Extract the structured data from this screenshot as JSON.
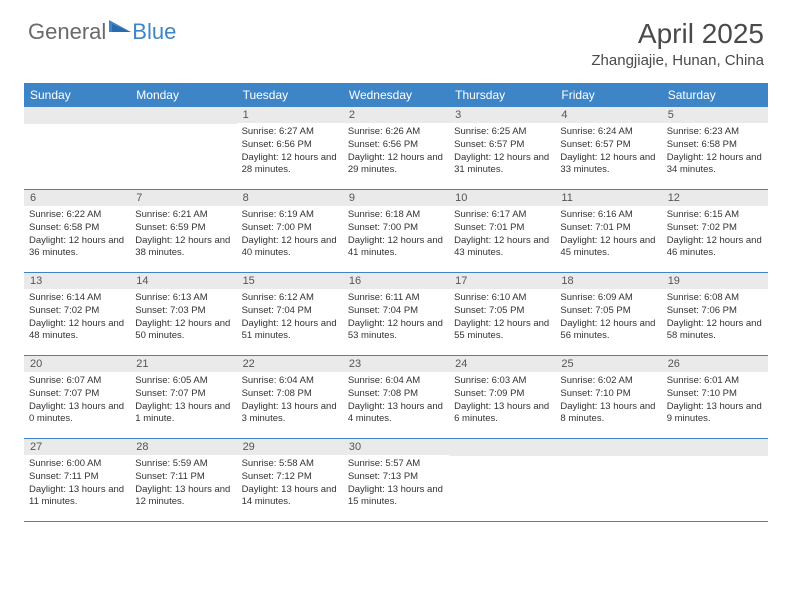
{
  "logo": {
    "text1": "General",
    "text2": "Blue"
  },
  "title": "April 2025",
  "location": "Zhangjiajie, Hunan, China",
  "colors": {
    "header_bg": "#3d85c6",
    "header_text": "#ffffff",
    "daynum_bg": "#eaeaea",
    "daynum_text": "#555555",
    "body_text": "#333333",
    "border": "#3d85c6"
  },
  "fonts": {
    "title_size": 28,
    "location_size": 15,
    "header_size": 12,
    "daynum_size": 11,
    "body_size": 9.5
  },
  "dayNames": [
    "Sunday",
    "Monday",
    "Tuesday",
    "Wednesday",
    "Thursday",
    "Friday",
    "Saturday"
  ],
  "weeks": [
    [
      {
        "n": "",
        "sr": "",
        "ss": "",
        "dl": ""
      },
      {
        "n": "",
        "sr": "",
        "ss": "",
        "dl": ""
      },
      {
        "n": "1",
        "sr": "Sunrise: 6:27 AM",
        "ss": "Sunset: 6:56 PM",
        "dl": "Daylight: 12 hours and 28 minutes."
      },
      {
        "n": "2",
        "sr": "Sunrise: 6:26 AM",
        "ss": "Sunset: 6:56 PM",
        "dl": "Daylight: 12 hours and 29 minutes."
      },
      {
        "n": "3",
        "sr": "Sunrise: 6:25 AM",
        "ss": "Sunset: 6:57 PM",
        "dl": "Daylight: 12 hours and 31 minutes."
      },
      {
        "n": "4",
        "sr": "Sunrise: 6:24 AM",
        "ss": "Sunset: 6:57 PM",
        "dl": "Daylight: 12 hours and 33 minutes."
      },
      {
        "n": "5",
        "sr": "Sunrise: 6:23 AM",
        "ss": "Sunset: 6:58 PM",
        "dl": "Daylight: 12 hours and 34 minutes."
      }
    ],
    [
      {
        "n": "6",
        "sr": "Sunrise: 6:22 AM",
        "ss": "Sunset: 6:58 PM",
        "dl": "Daylight: 12 hours and 36 minutes."
      },
      {
        "n": "7",
        "sr": "Sunrise: 6:21 AM",
        "ss": "Sunset: 6:59 PM",
        "dl": "Daylight: 12 hours and 38 minutes."
      },
      {
        "n": "8",
        "sr": "Sunrise: 6:19 AM",
        "ss": "Sunset: 7:00 PM",
        "dl": "Daylight: 12 hours and 40 minutes."
      },
      {
        "n": "9",
        "sr": "Sunrise: 6:18 AM",
        "ss": "Sunset: 7:00 PM",
        "dl": "Daylight: 12 hours and 41 minutes."
      },
      {
        "n": "10",
        "sr": "Sunrise: 6:17 AM",
        "ss": "Sunset: 7:01 PM",
        "dl": "Daylight: 12 hours and 43 minutes."
      },
      {
        "n": "11",
        "sr": "Sunrise: 6:16 AM",
        "ss": "Sunset: 7:01 PM",
        "dl": "Daylight: 12 hours and 45 minutes."
      },
      {
        "n": "12",
        "sr": "Sunrise: 6:15 AM",
        "ss": "Sunset: 7:02 PM",
        "dl": "Daylight: 12 hours and 46 minutes."
      }
    ],
    [
      {
        "n": "13",
        "sr": "Sunrise: 6:14 AM",
        "ss": "Sunset: 7:02 PM",
        "dl": "Daylight: 12 hours and 48 minutes."
      },
      {
        "n": "14",
        "sr": "Sunrise: 6:13 AM",
        "ss": "Sunset: 7:03 PM",
        "dl": "Daylight: 12 hours and 50 minutes."
      },
      {
        "n": "15",
        "sr": "Sunrise: 6:12 AM",
        "ss": "Sunset: 7:04 PM",
        "dl": "Daylight: 12 hours and 51 minutes."
      },
      {
        "n": "16",
        "sr": "Sunrise: 6:11 AM",
        "ss": "Sunset: 7:04 PM",
        "dl": "Daylight: 12 hours and 53 minutes."
      },
      {
        "n": "17",
        "sr": "Sunrise: 6:10 AM",
        "ss": "Sunset: 7:05 PM",
        "dl": "Daylight: 12 hours and 55 minutes."
      },
      {
        "n": "18",
        "sr": "Sunrise: 6:09 AM",
        "ss": "Sunset: 7:05 PM",
        "dl": "Daylight: 12 hours and 56 minutes."
      },
      {
        "n": "19",
        "sr": "Sunrise: 6:08 AM",
        "ss": "Sunset: 7:06 PM",
        "dl": "Daylight: 12 hours and 58 minutes."
      }
    ],
    [
      {
        "n": "20",
        "sr": "Sunrise: 6:07 AM",
        "ss": "Sunset: 7:07 PM",
        "dl": "Daylight: 13 hours and 0 minutes."
      },
      {
        "n": "21",
        "sr": "Sunrise: 6:05 AM",
        "ss": "Sunset: 7:07 PM",
        "dl": "Daylight: 13 hours and 1 minute."
      },
      {
        "n": "22",
        "sr": "Sunrise: 6:04 AM",
        "ss": "Sunset: 7:08 PM",
        "dl": "Daylight: 13 hours and 3 minutes."
      },
      {
        "n": "23",
        "sr": "Sunrise: 6:04 AM",
        "ss": "Sunset: 7:08 PM",
        "dl": "Daylight: 13 hours and 4 minutes."
      },
      {
        "n": "24",
        "sr": "Sunrise: 6:03 AM",
        "ss": "Sunset: 7:09 PM",
        "dl": "Daylight: 13 hours and 6 minutes."
      },
      {
        "n": "25",
        "sr": "Sunrise: 6:02 AM",
        "ss": "Sunset: 7:10 PM",
        "dl": "Daylight: 13 hours and 8 minutes."
      },
      {
        "n": "26",
        "sr": "Sunrise: 6:01 AM",
        "ss": "Sunset: 7:10 PM",
        "dl": "Daylight: 13 hours and 9 minutes."
      }
    ],
    [
      {
        "n": "27",
        "sr": "Sunrise: 6:00 AM",
        "ss": "Sunset: 7:11 PM",
        "dl": "Daylight: 13 hours and 11 minutes."
      },
      {
        "n": "28",
        "sr": "Sunrise: 5:59 AM",
        "ss": "Sunset: 7:11 PM",
        "dl": "Daylight: 13 hours and 12 minutes."
      },
      {
        "n": "29",
        "sr": "Sunrise: 5:58 AM",
        "ss": "Sunset: 7:12 PM",
        "dl": "Daylight: 13 hours and 14 minutes."
      },
      {
        "n": "30",
        "sr": "Sunrise: 5:57 AM",
        "ss": "Sunset: 7:13 PM",
        "dl": "Daylight: 13 hours and 15 minutes."
      },
      {
        "n": "",
        "sr": "",
        "ss": "",
        "dl": ""
      },
      {
        "n": "",
        "sr": "",
        "ss": "",
        "dl": ""
      },
      {
        "n": "",
        "sr": "",
        "ss": "",
        "dl": ""
      }
    ]
  ]
}
